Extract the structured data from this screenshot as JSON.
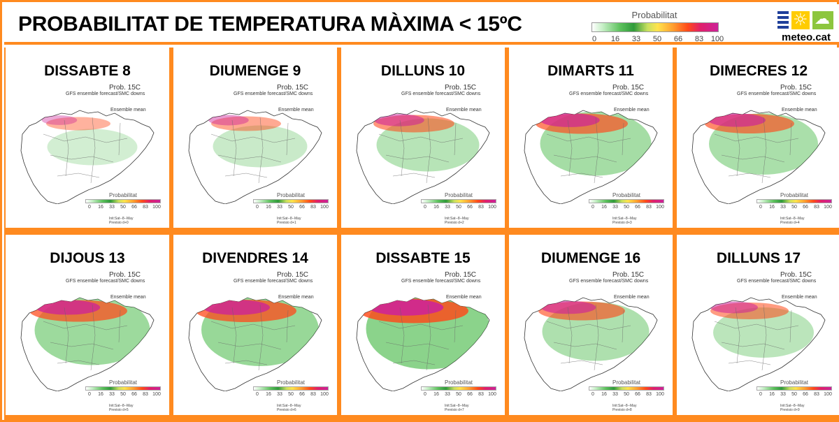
{
  "header": {
    "title": "PROBABILITAT DE TEMPERATURA MÀXIMA < 15ºC",
    "legend_title": "Probabilitat",
    "legend_ticks": [
      "0",
      "16",
      "33",
      "50",
      "66",
      "83",
      "100"
    ],
    "logo_text": "meteo.cat"
  },
  "panel_text": {
    "prob": "Prob. 15C",
    "gfs": "GFS ensemble forecast/SMC downs",
    "ensemble": "Ensemble mean",
    "legend_title": "Probabilitat",
    "legend_ticks": [
      "0",
      "16",
      "33",
      "50",
      "66",
      "83",
      "100"
    ],
    "init": "Init:Sat--8--May"
  },
  "panels": [
    {
      "day": "DISSABTE 8",
      "previsio": "Previsio d+0",
      "intensity": 0.15
    },
    {
      "day": "DIUMENGE 9",
      "previsio": "Previsio d+1",
      "intensity": 0.25
    },
    {
      "day": "DILLUNS 10",
      "previsio": "Previsio d+2",
      "intensity": 0.45
    },
    {
      "day": "DIMARTS 11",
      "previsio": "Previsio d+3",
      "intensity": 0.65
    },
    {
      "day": "DIMECRES 12",
      "previsio": "Previsio d+4",
      "intensity": 0.6
    },
    {
      "day": "DIJOUS 13",
      "previsio": "Previsio d+5",
      "intensity": 0.75
    },
    {
      "day": "DIVENDRES 14",
      "previsio": "Previsio d+6",
      "intensity": 0.8
    },
    {
      "day": "DISSABTE 15",
      "previsio": "Previsio d+7",
      "intensity": 0.95
    },
    {
      "day": "DIUMENGE 16",
      "previsio": "Previsio d+8",
      "intensity": 0.55
    },
    {
      "day": "DILLUNS 17",
      "previsio": "Previsio d+9",
      "intensity": 0.4
    }
  ],
  "colors": {
    "frame": "#ff8a1f",
    "high": "#cc2299",
    "mid": "#ff4a1a",
    "low": "#5ec25e"
  }
}
